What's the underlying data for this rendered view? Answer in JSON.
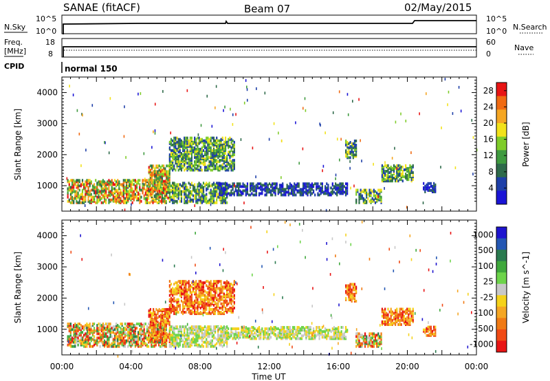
{
  "header": {
    "title": "SANAE (fitACF)",
    "beam": "Beam 07",
    "date": "02/May/2015"
  },
  "noise_panel": {
    "left_label": "N.Sky",
    "right_label": "N.Search",
    "left_ticks": [
      "10^5",
      "10^0"
    ],
    "right_ticks": [
      "10^5",
      "10^0"
    ]
  },
  "freq_panel": {
    "left_label_line1": "Freq.",
    "left_label_line2": "[MHz]",
    "left_ticks": [
      "18",
      "8"
    ],
    "right_label": "Nave",
    "right_ticks": [
      "60",
      "0"
    ]
  },
  "cpid_panel": {
    "label": "CPID",
    "mode": "normal 150"
  },
  "colors": {
    "power_scale": [
      "#1a14d6",
      "#1e3fa8",
      "#2e6a4a",
      "#3f9a3f",
      "#7fcc2a",
      "#f2e21a",
      "#f5a623",
      "#f06a12",
      "#e81414"
    ],
    "velocity_scale": [
      "#1e14cf",
      "#2457b3",
      "#2a7a4f",
      "#3fa83c",
      "#6dd44a",
      "#c8c8c8",
      "#f5d21a",
      "#f5a623",
      "#f07a14",
      "#f04a14",
      "#e81414"
    ]
  },
  "chart_data": [
    {
      "type": "heatmap",
      "parameter": "power",
      "xlabel": "",
      "ylabel": "Slant Range [km]",
      "xlim": [
        "00:00",
        "24:00"
      ],
      "ylim": [
        180,
        4500
      ],
      "y_ticks": [
        1000,
        2000,
        3000,
        4000
      ],
      "colorbar": {
        "label": "Power [dB]",
        "ticks": [
          4,
          8,
          12,
          16,
          20,
          24,
          28
        ],
        "range": [
          0,
          30
        ]
      },
      "echo_regions": [
        {
          "t_start": 0.3,
          "t_end": 6.0,
          "r_min": 450,
          "r_max": 1200,
          "level": "high"
        },
        {
          "t_start": 5.0,
          "t_end": 6.2,
          "r_min": 600,
          "r_max": 1650,
          "level": "high"
        },
        {
          "t_start": 6.2,
          "t_end": 9.6,
          "r_min": 450,
          "r_max": 1100,
          "level": "medium"
        },
        {
          "t_start": 6.2,
          "t_end": 10.0,
          "r_min": 1500,
          "r_max": 2550,
          "level": "medium"
        },
        {
          "t_start": 9.0,
          "t_end": 16.5,
          "r_min": 700,
          "r_max": 1100,
          "level": "low"
        },
        {
          "t_start": 16.4,
          "t_end": 17.0,
          "r_min": 1900,
          "r_max": 2450,
          "level": "medium"
        },
        {
          "t_start": 17.0,
          "t_end": 18.5,
          "r_min": 450,
          "r_max": 900,
          "level": "medium"
        },
        {
          "t_start": 18.5,
          "t_end": 20.3,
          "r_min": 1150,
          "r_max": 1650,
          "level": "medium"
        },
        {
          "t_start": 20.9,
          "t_end": 21.6,
          "r_min": 800,
          "r_max": 1100,
          "level": "low"
        }
      ]
    },
    {
      "type": "heatmap",
      "parameter": "velocity",
      "xlabel": "Time UT",
      "ylabel": "Slant Range [km]",
      "xlim": [
        "00:00",
        "24:00"
      ],
      "x_ticks": [
        "00:00",
        "04:00",
        "08:00",
        "12:00",
        "16:00",
        "20:00",
        "00:00"
      ],
      "ylim": [
        180,
        4500
      ],
      "y_ticks": [
        1000,
        2000,
        3000,
        4000
      ],
      "colorbar": {
        "label": "Velocity [m s^-1]",
        "ticks": [
          "1000",
          "500",
          "100",
          "25",
          "-25",
          "-100",
          "-500",
          "-1000"
        ]
      },
      "echo_regions": [
        {
          "t_start": 0.3,
          "t_end": 6.0,
          "r_min": 450,
          "r_max": 1200,
          "velocity": "mixed"
        },
        {
          "t_start": 5.0,
          "t_end": 6.2,
          "r_min": 600,
          "r_max": 1650,
          "velocity": "negative"
        },
        {
          "t_start": 6.2,
          "t_end": 9.6,
          "r_min": 450,
          "r_max": 1100,
          "velocity": "near-zero"
        },
        {
          "t_start": 6.2,
          "t_end": 10.0,
          "r_min": 1500,
          "r_max": 2550,
          "velocity": "negative"
        },
        {
          "t_start": 9.0,
          "t_end": 16.5,
          "r_min": 700,
          "r_max": 1100,
          "velocity": "near-zero"
        },
        {
          "t_start": 16.4,
          "t_end": 17.0,
          "r_min": 1900,
          "r_max": 2450,
          "velocity": "negative"
        },
        {
          "t_start": 17.0,
          "t_end": 18.5,
          "r_min": 450,
          "r_max": 900,
          "velocity": "mixed"
        },
        {
          "t_start": 18.5,
          "t_end": 20.3,
          "r_min": 1150,
          "r_max": 1650,
          "velocity": "negative"
        },
        {
          "t_start": 20.9,
          "t_end": 21.6,
          "r_min": 800,
          "r_max": 1100,
          "velocity": "negative"
        }
      ]
    }
  ]
}
